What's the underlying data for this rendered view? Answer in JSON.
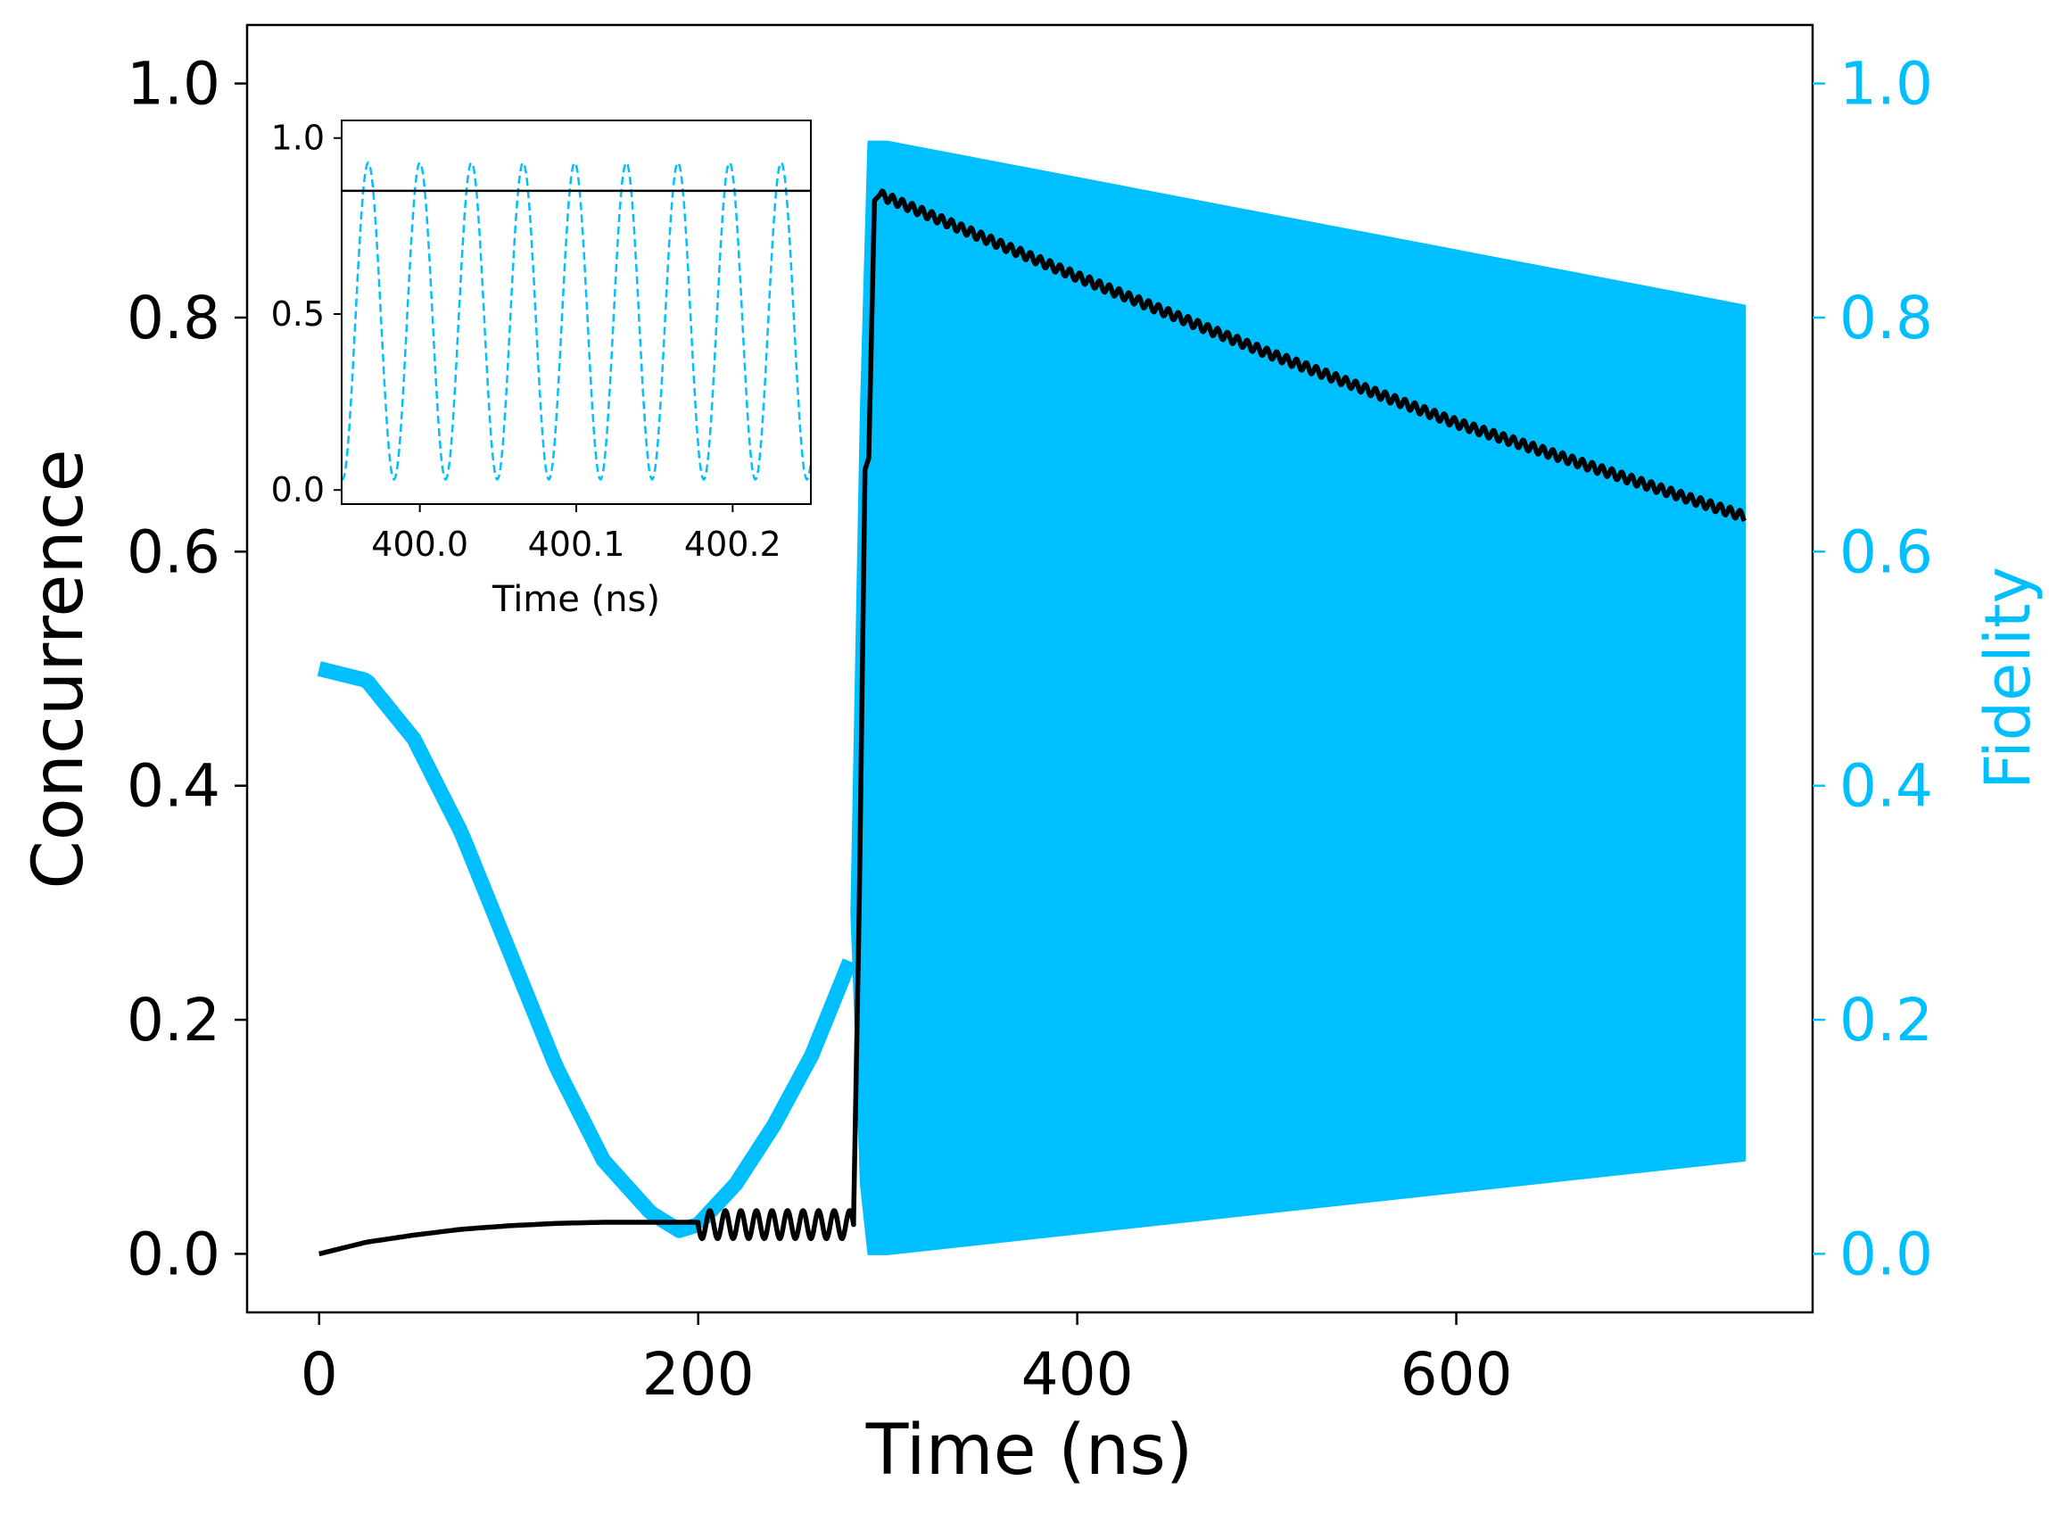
{
  "colors": {
    "fidelity": "#00BFFF",
    "concurrence": "#000000",
    "axes": "#000000"
  },
  "chart_data": [
    {
      "type": "line",
      "role": "main",
      "xlabel": "Time (ns)",
      "ylabel": "Concurrence",
      "y2label": "Fidelity",
      "xlim": [
        -38,
        788
      ],
      "ylim": [
        -0.05,
        1.05
      ],
      "y2lim": [
        -0.05,
        1.05
      ],
      "xticks": [
        0,
        200,
        400,
        600
      ],
      "xtick_labels": [
        "0",
        "200",
        "400",
        "600"
      ],
      "yticks": [
        0.0,
        0.2,
        0.4,
        0.6,
        0.8,
        1.0
      ],
      "ytick_labels": [
        "0.0",
        "0.2",
        "0.4",
        "0.6",
        "0.8",
        "1.0"
      ],
      "y2ticks": [
        0.0,
        0.2,
        0.4,
        0.6,
        0.8,
        1.0
      ],
      "y2tick_labels": [
        "0.0",
        "0.2",
        "0.4",
        "0.6",
        "0.8",
        "1.0"
      ],
      "series": [
        {
          "name": "Fidelity",
          "axis": "right",
          "style": "thick band / dense oscillation",
          "segments": [
            {
              "x": [
                0,
                25,
                50,
                75,
                100,
                125,
                150,
                175,
                190,
                200
              ],
              "y": [
                0.5,
                0.49,
                0.44,
                0.36,
                0.26,
                0.16,
                0.08,
                0.035,
                0.02,
                0.025
              ]
            },
            {
              "x": [
                200,
                220,
                240,
                260,
                280
              ],
              "y": [
                0.025,
                0.06,
                0.11,
                0.17,
                0.25
              ]
            },
            {
              "x": [
                290,
                300,
                752
              ],
              "y_upper": [
                0.95,
                0.95,
                0.81
              ],
              "y_lower": [
                0.0,
                0.0,
                0.08
              ]
            }
          ]
        },
        {
          "name": "Concurrence",
          "axis": "left",
          "style": "solid line",
          "segments": [
            {
              "x": [
                0,
                25,
                50,
                75,
                100,
                125,
                150,
                175,
                200
              ],
              "y": [
                0.0,
                0.01,
                0.016,
                0.021,
                0.024,
                0.026,
                0.027,
                0.027,
                0.027
              ]
            },
            {
              "x_range": [
                200,
                282
              ],
              "center": 0.025,
              "amplitude": 0.012,
              "cycles": 10
            },
            {
              "x": [
                282,
                285,
                288,
                290,
                293,
                296
              ],
              "y": [
                0.03,
                0.3,
                0.67,
                0.68,
                0.9,
                0.905
              ]
            },
            {
              "x": [
                296,
                400,
                500,
                600,
                752
              ],
              "y": [
                0.905,
                0.835,
                0.77,
                0.71,
                0.63
              ],
              "ripple": 0.004
            }
          ]
        }
      ]
    },
    {
      "type": "line",
      "role": "inset",
      "xlabel": "Time (ns)",
      "xlim": [
        399.95,
        400.25
      ],
      "ylim": [
        -0.04,
        1.05
      ],
      "xticks": [
        400.0,
        400.1,
        400.2
      ],
      "xtick_labels": [
        "400.0",
        "400.1",
        "400.2"
      ],
      "yticks": [
        0.0,
        0.5,
        1.0
      ],
      "ytick_labels": [
        "0.0",
        "0.5",
        "1.0"
      ],
      "series": [
        {
          "name": "Fidelity",
          "style": "dashed",
          "color_ref": "fidelity",
          "min": 0.03,
          "max": 0.93,
          "period_ns": 0.033,
          "peak_at": 399.967
        },
        {
          "name": "Concurrence",
          "style": "solid",
          "color_ref": "concurrence",
          "value": 0.85
        }
      ]
    }
  ]
}
